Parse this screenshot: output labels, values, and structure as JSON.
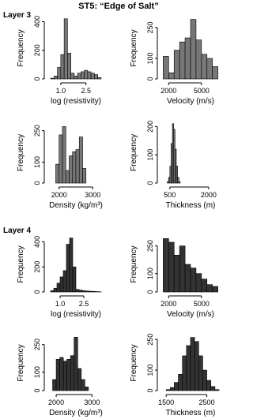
{
  "title": "ST5: “Edge of Salt”",
  "layer_labels": [
    "Layer 3",
    "Layer 4"
  ],
  "chart_data": [
    {
      "type": "histogram",
      "x_label": "log (resistivity)",
      "y_label": "Frequency",
      "color": "#777777",
      "bins": [
        0.4,
        0.6,
        0.8,
        1.0,
        1.2,
        1.4,
        1.6,
        1.8,
        2.0,
        2.2,
        2.4,
        2.6,
        2.8,
        3.0,
        3.2,
        3.4
      ],
      "values": [
        5,
        20,
        80,
        170,
        420,
        180,
        40,
        20,
        40,
        50,
        60,
        50,
        40,
        30,
        10
      ],
      "xlim": [
        0.3,
        3.5
      ],
      "ylim": [
        0,
        430
      ],
      "xticks": [
        {
          "value": 1,
          "label": "1.0"
        },
        {
          "value": 2.5,
          "label": "2.5"
        }
      ],
      "yticks": [
        0,
        200,
        400
      ]
    },
    {
      "type": "histogram",
      "x_label": "Velocity (m/s)",
      "y_label": "Frequency",
      "color": "#777777",
      "bins": [
        1500,
        2000,
        2500,
        3000,
        3500,
        4000,
        4500,
        5000,
        5500,
        6000,
        6500
      ],
      "values": [
        110,
        30,
        140,
        180,
        200,
        290,
        190,
        120,
        100,
        60
      ],
      "xlim": [
        1400,
        6600
      ],
      "ylim": [
        0,
        300
      ],
      "xticks": [
        2000,
        5000
      ],
      "yticks": [
        0,
        100,
        250
      ]
    },
    {
      "type": "histogram",
      "x_label": "Density (kg/m³)",
      "y_label": "Frequency",
      "color": "#777777",
      "bins": [
        1900,
        2000,
        2100,
        2200,
        2300,
        2400,
        2500,
        2600,
        2700,
        2800
      ],
      "values": [
        90,
        230,
        270,
        60,
        130,
        150,
        160,
        220,
        70
      ],
      "xlim": [
        1700,
        3300
      ],
      "ylim": [
        0,
        290
      ],
      "xticks": [
        2000,
        3000
      ],
      "yticks": [
        0,
        100,
        250
      ]
    },
    {
      "type": "histogram",
      "x_label": "Thickness (m)",
      "y_label": "Frequency",
      "color": "#777777",
      "bins": [
        400,
        450,
        500,
        550,
        600,
        650,
        700,
        750,
        800,
        850,
        900
      ],
      "values": [
        5,
        20,
        60,
        140,
        210,
        190,
        120,
        60,
        20,
        5
      ],
      "xlim": [
        200,
        2400
      ],
      "ylim": [
        0,
        215
      ],
      "xticks": [
        500,
        2000
      ],
      "yticks": [
        0,
        100,
        200
      ]
    },
    {
      "type": "histogram",
      "x_label": "log (resistivity)",
      "y_label": "Frequency",
      "color": "#333333",
      "bins": [
        0.4,
        0.6,
        0.8,
        1.0,
        1.2,
        1.4,
        1.6,
        1.8,
        2.0,
        2.2,
        2.4,
        2.6,
        2.8,
        3.0,
        3.2,
        3.4,
        3.6
      ],
      "values": [
        10,
        30,
        70,
        120,
        170,
        380,
        430,
        200,
        20,
        15,
        10,
        8,
        6,
        5,
        3,
        2
      ],
      "xlim": [
        0.3,
        3.7
      ],
      "ylim": [
        0,
        440
      ],
      "xticks": [
        {
          "value": 1,
          "label": "1.0"
        },
        {
          "value": 2.5,
          "label": "2.5"
        }
      ],
      "yticks": [
        0,
        200,
        400
      ]
    },
    {
      "type": "histogram",
      "x_label": "Velocity (m/s)",
      "y_label": "Frequency",
      "color": "#333333",
      "bins": [
        1500,
        2000,
        2500,
        3000,
        3500,
        4000,
        4500,
        5000,
        5500,
        6000,
        6500
      ],
      "values": [
        290,
        270,
        200,
        250,
        150,
        130,
        100,
        70,
        40,
        30
      ],
      "xlim": [
        1400,
        6600
      ],
      "ylim": [
        0,
        300
      ],
      "xticks": [
        2000,
        5000
      ],
      "yticks": [
        0,
        100,
        250
      ]
    },
    {
      "type": "histogram",
      "x_label": "Density (kg/m³)",
      "y_label": "Frequency",
      "color": "#333333",
      "bins": [
        1900,
        2000,
        2100,
        2200,
        2300,
        2400,
        2500,
        2600,
        2700,
        2800,
        2900
      ],
      "values": [
        60,
        170,
        180,
        160,
        170,
        190,
        290,
        120,
        60,
        20
      ],
      "xlim": [
        1800,
        3300
      ],
      "ylim": [
        0,
        300
      ],
      "xticks": [
        2000,
        3000
      ],
      "yticks": [
        0,
        100,
        250
      ]
    },
    {
      "type": "histogram",
      "x_label": "Thickness (m)",
      "y_label": "Frequency",
      "color": "#333333",
      "bins": [
        1500,
        1600,
        1700,
        1800,
        1900,
        2000,
        2100,
        2200,
        2300,
        2400,
        2500,
        2600,
        2700,
        2800
      ],
      "values": [
        5,
        15,
        40,
        80,
        170,
        220,
        260,
        240,
        170,
        100,
        50,
        20,
        5
      ],
      "xlim": [
        1400,
        2800
      ],
      "ylim": [
        0,
        270
      ],
      "xticks": [
        1500,
        2500
      ],
      "yticks": [
        0,
        100,
        250
      ]
    }
  ]
}
